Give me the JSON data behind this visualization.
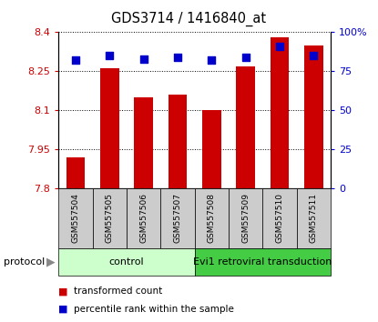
{
  "title": "GDS3714 / 1416840_at",
  "samples": [
    "GSM557504",
    "GSM557505",
    "GSM557506",
    "GSM557507",
    "GSM557508",
    "GSM557509",
    "GSM557510",
    "GSM557511"
  ],
  "transformed_counts": [
    7.92,
    8.26,
    8.15,
    8.16,
    8.1,
    8.27,
    8.38,
    8.35
  ],
  "percentile_ranks": [
    82,
    85,
    83,
    84,
    82,
    84,
    91,
    85
  ],
  "y_min": 7.8,
  "y_max": 8.4,
  "y_ticks": [
    7.8,
    7.95,
    8.1,
    8.25,
    8.4
  ],
  "y_labels": [
    "7.8",
    "7.95",
    "8.1",
    "8.25",
    "8.4"
  ],
  "y2_ticks": [
    0,
    25,
    50,
    75,
    100
  ],
  "y2_labels": [
    "0",
    "25",
    "50",
    "75",
    "100%"
  ],
  "bar_color": "#cc0000",
  "dot_color": "#0000cc",
  "control_color": "#ccffcc",
  "evi1_color": "#44cc44",
  "sample_bg_color": "#cccccc",
  "control_samples": 4,
  "evi1_samples": 4,
  "control_label": "control",
  "evi1_label": "Evi1 retroviral transduction",
  "protocol_label": "protocol",
  "legend_bar_label": "transformed count",
  "legend_dot_label": "percentile rank within the sample",
  "bar_width": 0.55,
  "dot_marker_size": 6
}
